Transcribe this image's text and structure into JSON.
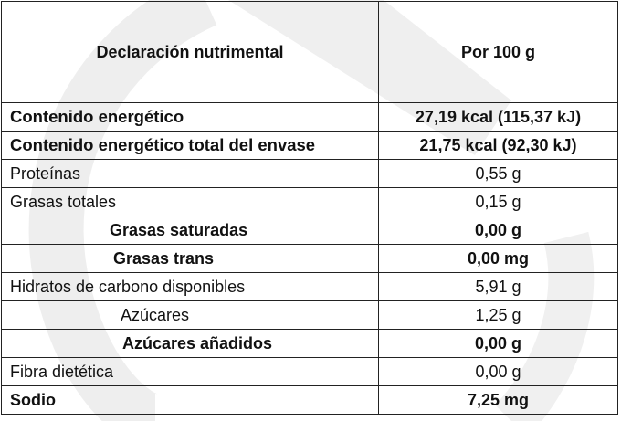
{
  "header": {
    "nutrient": "Declaración nutrimental",
    "value": "Por 100 g"
  },
  "rows": [
    {
      "label": "Contenido energético",
      "value": "27,19 kcal (115,37 kJ)"
    },
    {
      "label": "Contenido energético total del envase",
      "value": "21,75 kcal (92,30 kJ)"
    },
    {
      "label": "Proteínas",
      "value": "0,55 g"
    },
    {
      "label": "Grasas totales",
      "value": "0,15 g"
    },
    {
      "label": "Grasas saturadas",
      "value": "0,00 g"
    },
    {
      "label": "Grasas trans",
      "value": "0,00 mg"
    },
    {
      "label": "Hidratos de carbono disponibles",
      "value": "5,91 g"
    },
    {
      "label": "Azúcares",
      "value": "1,25 g"
    },
    {
      "label": "Azúcares añadidos",
      "value": "0,00 g"
    },
    {
      "label": "Fibra dietética",
      "value": "0,00 g"
    },
    {
      "label": "Sodio",
      "value": "7,25 mg"
    }
  ],
  "colors": {
    "border": "#222222",
    "watermark": "#ececec"
  }
}
